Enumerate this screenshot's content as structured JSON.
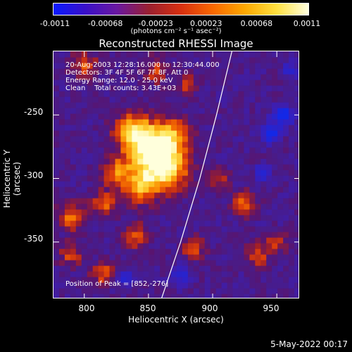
{
  "colorbar": {
    "ticks": [
      "-0.0011",
      "-0.00068",
      "-0.00023",
      "0.00023",
      "0.00068",
      "0.0011"
    ],
    "unit": "(photons cm⁻² s⁻¹ asec⁻²)",
    "gradient": [
      "#0a1aff",
      "#3a10c8",
      "#6a18a0",
      "#9a2030",
      "#d83010",
      "#f86800",
      "#fca800",
      "#fee040",
      "#ffffe0"
    ]
  },
  "chart_data": {
    "type": "heatmap",
    "title": "Reconstructed RHESSI Image",
    "xlabel": "Heliocentric X (arcsec)",
    "ylabel": "Heliocentric Y (arcsec)",
    "xlim": [
      776,
      968
    ],
    "ylim": [
      -395,
      -200
    ],
    "xticks": [
      "800",
      "850",
      "900",
      "950"
    ],
    "yticks": [
      "-250",
      "-300",
      "-350"
    ],
    "xtick_values": [
      800,
      850,
      900,
      950
    ],
    "ytick_values": [
      -250,
      -300,
      -350
    ],
    "info_lines": [
      "20-Aug-2003 12:28:16.000 to 12:30:44.000",
      "Detectors: 3F 4F 5F 6F 7F 8F, Att 0",
      "Energy Range: 12.0 - 25.0 keV",
      "Clean    Total counts: 3.43E+03"
    ],
    "peak_label": "Position of Peak = [852,-276]",
    "peak": [
      852,
      -276
    ],
    "limb_points": [
      [
        860,
        -395
      ],
      [
        875,
        -350
      ],
      [
        890,
        -300
      ],
      [
        903,
        -250
      ],
      [
        915,
        -200
      ]
    ]
  },
  "footer": {
    "date": "5-May-2022 00:17"
  }
}
